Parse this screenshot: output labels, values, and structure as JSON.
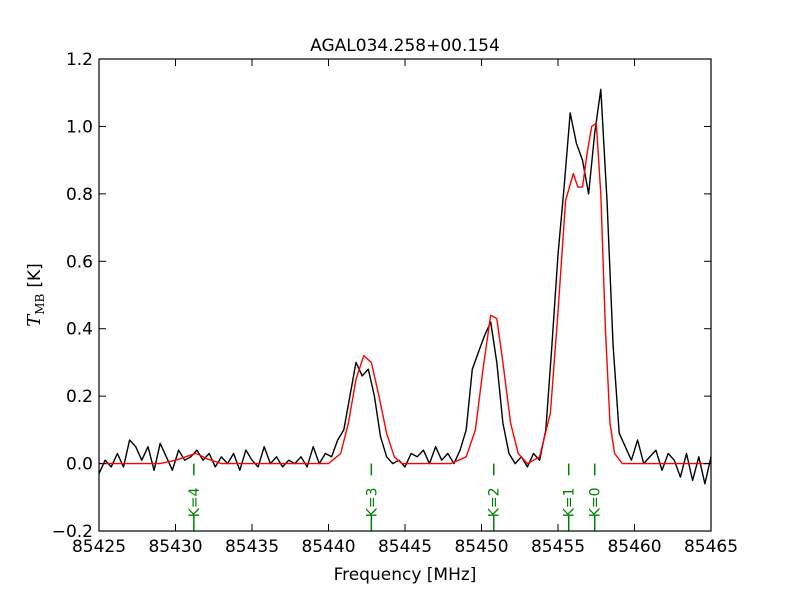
{
  "chart_data": {
    "type": "line",
    "title": "AGAL034.258+00.154",
    "xlabel": "Frequency [MHz]",
    "ylabel": {
      "symbol": "T",
      "subscript": "MB",
      "unit": "[K]"
    },
    "xlim": [
      85425,
      85465
    ],
    "ylim": [
      -0.2,
      1.2
    ],
    "xticks": [
      85425,
      85430,
      85435,
      85440,
      85445,
      85450,
      85455,
      85460,
      85465
    ],
    "yticks": [
      -0.2,
      0.0,
      0.2,
      0.4,
      0.6,
      0.8,
      1.0,
      1.2
    ],
    "ytick_labels": [
      "−0.2",
      "0.0",
      "0.2",
      "0.4",
      "0.6",
      "0.8",
      "1.0",
      "1.2"
    ],
    "grid": false,
    "colors": {
      "observed": "#000000",
      "fit": "#ff0000",
      "markers": "#008000"
    },
    "series": [
      {
        "style": "observed",
        "x": [
          85425.0,
          85425.4,
          85425.8,
          85426.2,
          85426.6,
          85427.0,
          85427.4,
          85427.8,
          85428.2,
          85428.6,
          85429.0,
          85429.4,
          85429.8,
          85430.2,
          85430.6,
          85431.0,
          85431.4,
          85431.8,
          85432.2,
          85432.6,
          85433.0,
          85433.4,
          85433.8,
          85434.2,
          85434.6,
          85435.0,
          85435.4,
          85435.8,
          85436.2,
          85436.6,
          85437.0,
          85437.4,
          85437.8,
          85438.2,
          85438.6,
          85439.0,
          85439.4,
          85439.8,
          85440.2,
          85440.6,
          85441.0,
          85441.4,
          85441.8,
          85442.2,
          85442.6,
          85443.0,
          85443.4,
          85443.8,
          85444.2,
          85444.6,
          85445.0,
          85445.4,
          85445.8,
          85446.2,
          85446.6,
          85447.0,
          85447.4,
          85447.8,
          85448.2,
          85448.6,
          85449.0,
          85449.4,
          85449.8,
          85450.2,
          85450.6,
          85451.0,
          85451.4,
          85451.8,
          85452.2,
          85452.6,
          85453.0,
          85453.4,
          85453.8,
          85454.2,
          85454.6,
          85455.0,
          85455.4,
          85455.8,
          85456.2,
          85456.6,
          85457.0,
          85457.4,
          85457.8,
          85458.2,
          85458.6,
          85459.0,
          85459.4,
          85459.8,
          85460.2,
          85460.6,
          85461.0,
          85461.4,
          85461.8,
          85462.2,
          85462.6,
          85463.0,
          85463.4,
          85463.8,
          85464.2,
          85464.6,
          85465.0
        ],
        "y": [
          -0.03,
          0.01,
          -0.01,
          0.03,
          -0.01,
          0.07,
          0.05,
          0.01,
          0.05,
          -0.02,
          0.06,
          0.02,
          -0.02,
          0.04,
          0.01,
          0.02,
          0.04,
          0.01,
          0.03,
          -0.01,
          0.02,
          0.0,
          0.03,
          -0.02,
          0.04,
          0.01,
          -0.01,
          0.05,
          0.0,
          0.02,
          -0.01,
          0.01,
          0.0,
          0.02,
          -0.01,
          0.05,
          0.0,
          0.03,
          0.02,
          0.07,
          0.1,
          0.2,
          0.3,
          0.26,
          0.28,
          0.2,
          0.08,
          0.02,
          0.0,
          0.01,
          -0.01,
          0.03,
          0.02,
          0.04,
          0.0,
          0.05,
          0.01,
          0.03,
          0.0,
          0.04,
          0.1,
          0.28,
          0.33,
          0.38,
          0.42,
          0.3,
          0.12,
          0.03,
          0.0,
          0.02,
          -0.01,
          0.03,
          0.01,
          0.1,
          0.35,
          0.62,
          0.82,
          1.04,
          0.95,
          0.9,
          0.8,
          0.98,
          1.11,
          0.78,
          0.35,
          0.09,
          0.05,
          0.01,
          0.07,
          0.0,
          0.02,
          0.04,
          -0.02,
          0.03,
          0.01,
          -0.04,
          0.03,
          -0.05,
          0.02,
          -0.06,
          0.02
        ]
      },
      {
        "style": "fit",
        "x": [
          85425.0,
          85427.0,
          85429.0,
          85430.0,
          85431.0,
          85431.3,
          85431.6,
          85432.0,
          85433.0,
          85434.0,
          85436.0,
          85438.0,
          85440.0,
          85440.8,
          85441.3,
          85441.8,
          85442.3,
          85442.8,
          85443.3,
          85443.8,
          85444.3,
          85444.8,
          85446.0,
          85448.0,
          85449.0,
          85449.6,
          85450.1,
          85450.6,
          85451.0,
          85451.4,
          85451.9,
          85452.4,
          85453.0,
          85453.8,
          85454.5,
          85455.0,
          85455.5,
          85456.0,
          85456.3,
          85456.6,
          85456.9,
          85457.2,
          85457.5,
          85457.8,
          85458.1,
          85458.4,
          85458.7,
          85459.2,
          85460.0,
          85462.0,
          85465.0
        ],
        "y": [
          0.0,
          0.0,
          0.0,
          0.01,
          0.025,
          0.03,
          0.025,
          0.015,
          0.0,
          0.0,
          0.0,
          0.0,
          0.0,
          0.03,
          0.12,
          0.25,
          0.32,
          0.3,
          0.2,
          0.09,
          0.02,
          0.0,
          0.0,
          0.0,
          0.02,
          0.1,
          0.28,
          0.44,
          0.43,
          0.3,
          0.12,
          0.03,
          0.0,
          0.02,
          0.15,
          0.45,
          0.78,
          0.86,
          0.82,
          0.82,
          0.92,
          1.0,
          1.01,
          0.8,
          0.4,
          0.12,
          0.03,
          0.0,
          0.0,
          0.0,
          0.0
        ]
      }
    ],
    "markers": [
      {
        "label": "K=4",
        "x": 85431.2
      },
      {
        "label": "K=3",
        "x": 85442.8
      },
      {
        "label": "K=2",
        "x": 85450.8
      },
      {
        "label": "K=1",
        "x": 85455.7
      },
      {
        "label": "K=0",
        "x": 85457.4
      }
    ]
  }
}
